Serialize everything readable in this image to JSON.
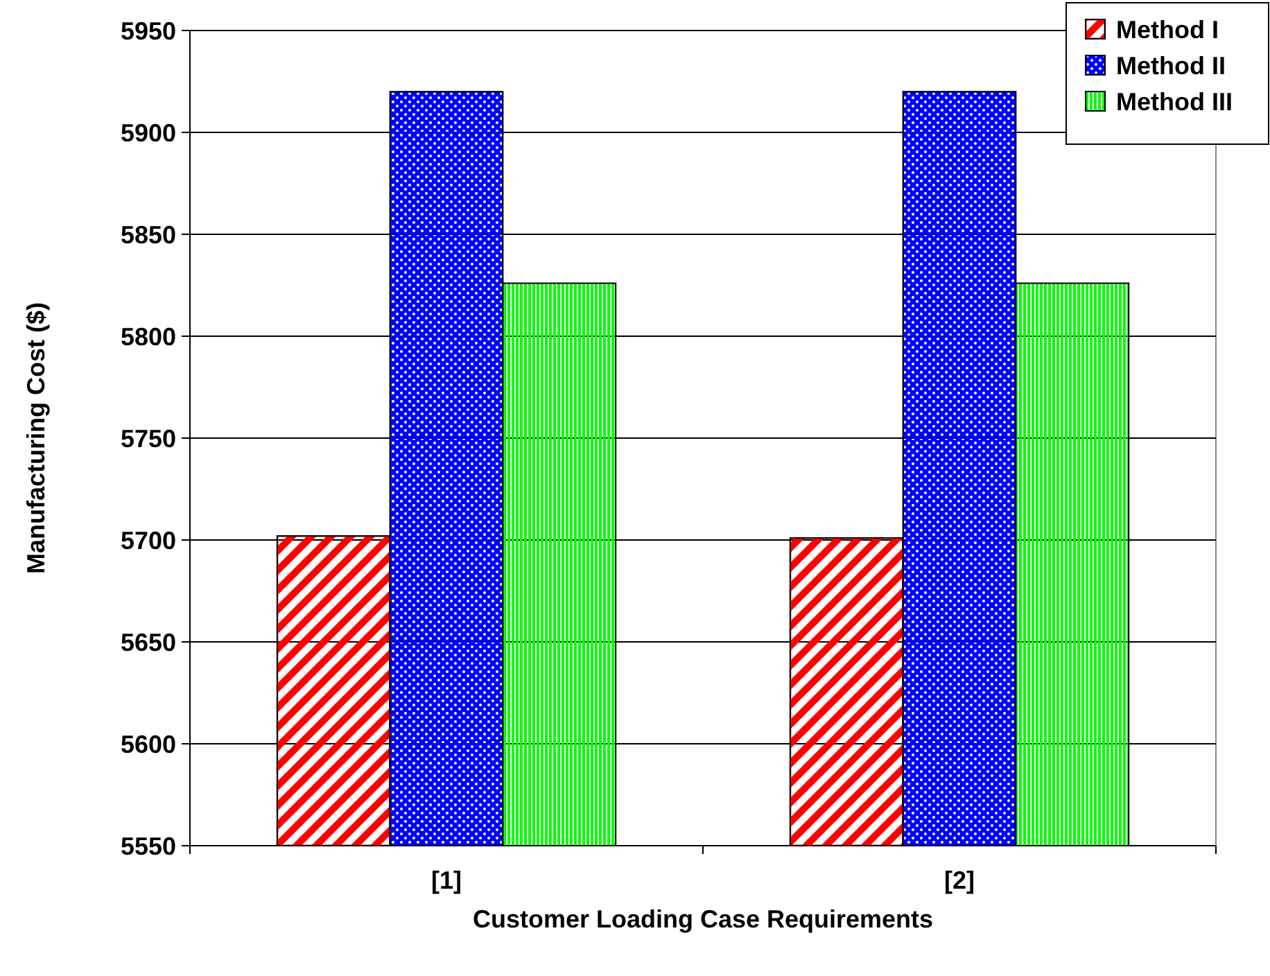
{
  "chart_data": {
    "type": "bar",
    "xlabel": "Customer Loading Case Requirements",
    "ylabel": "Manufacturing Cost ($)",
    "categories": [
      "[1]",
      "[2]"
    ],
    "series": [
      {
        "name": "Method I",
        "color": "#ff0000",
        "values": [
          5702,
          5701
        ]
      },
      {
        "name": "Method II",
        "color": "#0000ff",
        "values": [
          5920,
          5920
        ]
      },
      {
        "name": "Method III",
        "color": "#00ff00",
        "values": [
          5826,
          5826
        ]
      }
    ],
    "ylim": [
      5550,
      5950
    ],
    "yticks": [
      5550,
      5600,
      5650,
      5700,
      5750,
      5800,
      5850,
      5900,
      5950
    ],
    "grid": "y",
    "legend": "top right"
  }
}
